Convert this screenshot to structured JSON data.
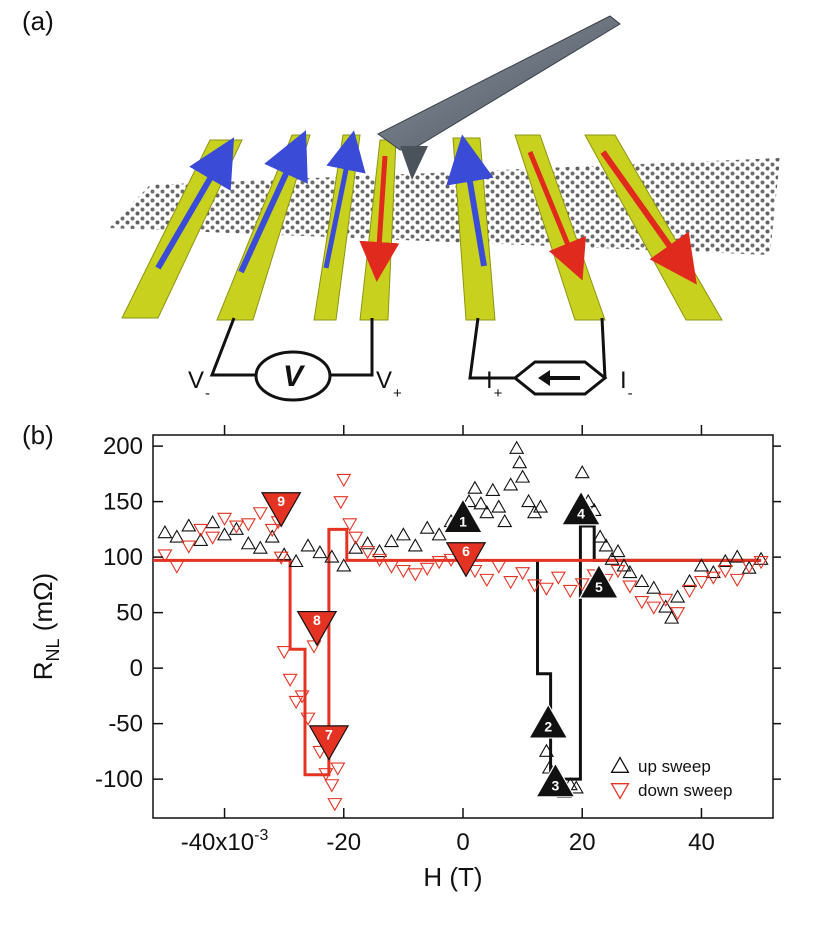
{
  "panels": {
    "a": "(a)",
    "b": "(b)"
  },
  "device": {
    "voltmeter_symbol": "V",
    "labels": {
      "v_minus": "V",
      "v_minus_sub": "-",
      "v_plus": "V",
      "v_plus_sub": "+",
      "i_plus": "I",
      "i_plus_sub": "+",
      "i_minus": "I",
      "i_minus_sub": "-"
    },
    "strip_arrows": [
      "up",
      "up",
      "up",
      "down",
      "up",
      "down",
      "down"
    ],
    "colors": {
      "electrode": "#c8d21e",
      "up_arrow": "#3a4bd8",
      "down_arrow": "#e02a1e",
      "tip": "#6b7480"
    }
  },
  "chart_data": {
    "type": "scatter",
    "xlabel": "H (T)",
    "ylabel_main": "R",
    "ylabel_sub": "NL",
    "ylabel_unit": "(mΩ)",
    "xlim": [
      -0.052,
      0.052
    ],
    "ylim": [
      -135,
      210
    ],
    "x_ticks": [
      {
        "value": -0.04,
        "label": "-40x10",
        "exp": "-3"
      },
      {
        "value": -0.02,
        "label": "-20",
        "exp": ""
      },
      {
        "value": 0.0,
        "label": "0",
        "exp": ""
      },
      {
        "value": 0.02,
        "label": "20",
        "exp": ""
      },
      {
        "value": 0.04,
        "label": "40",
        "exp": ""
      }
    ],
    "y_ticks": [
      {
        "value": 200,
        "label": "200"
      },
      {
        "value": 150,
        "label": "150"
      },
      {
        "value": 100,
        "label": "100"
      },
      {
        "value": 50,
        "label": "50"
      },
      {
        "value": 0,
        "label": "0"
      },
      {
        "value": -50,
        "label": "-50"
      },
      {
        "value": -100,
        "label": "-100"
      }
    ],
    "series": [
      {
        "name": "up sweep",
        "color": "#111111",
        "marker": "triangle-up",
        "points": [
          [
            -0.05,
            122
          ],
          [
            -0.048,
            118
          ],
          [
            -0.046,
            128
          ],
          [
            -0.044,
            115
          ],
          [
            -0.042,
            131
          ],
          [
            -0.04,
            120
          ],
          [
            -0.038,
            125
          ],
          [
            -0.036,
            112
          ],
          [
            -0.034,
            108
          ],
          [
            -0.032,
            118
          ],
          [
            -0.03,
            102
          ],
          [
            -0.028,
            96
          ],
          [
            -0.026,
            110
          ],
          [
            -0.024,
            104
          ],
          [
            -0.022,
            100
          ],
          [
            -0.02,
            92
          ],
          [
            -0.018,
            108
          ],
          [
            -0.016,
            112
          ],
          [
            -0.014,
            105
          ],
          [
            -0.012,
            114
          ],
          [
            -0.01,
            120
          ],
          [
            -0.008,
            110
          ],
          [
            -0.006,
            126
          ],
          [
            -0.004,
            120
          ],
          [
            -0.002,
            132
          ],
          [
            0.0,
            135
          ],
          [
            0.001,
            150
          ],
          [
            0.002,
            162
          ],
          [
            0.003,
            148
          ],
          [
            0.004,
            140
          ],
          [
            0.005,
            160
          ],
          [
            0.006,
            145
          ],
          [
            0.007,
            132
          ],
          [
            0.008,
            165
          ],
          [
            0.009,
            198
          ],
          [
            0.0095,
            185
          ],
          [
            0.01,
            172
          ],
          [
            0.011,
            150
          ],
          [
            0.012,
            140
          ],
          [
            0.013,
            145
          ],
          [
            0.014,
            -75
          ],
          [
            0.0145,
            -90
          ],
          [
            0.015,
            -110
          ],
          [
            0.016,
            -100
          ],
          [
            0.017,
            -112
          ],
          [
            0.018,
            -105
          ],
          [
            0.019,
            -108
          ],
          [
            0.02,
            176
          ],
          [
            0.021,
            150
          ],
          [
            0.022,
            142
          ],
          [
            0.023,
            118
          ],
          [
            0.024,
            110
          ],
          [
            0.025,
            98
          ],
          [
            0.026,
            105
          ],
          [
            0.027,
            92
          ],
          [
            0.028,
            86
          ],
          [
            0.03,
            78
          ],
          [
            0.032,
            72
          ],
          [
            0.034,
            55
          ],
          [
            0.035,
            45
          ],
          [
            0.036,
            64
          ],
          [
            0.038,
            78
          ],
          [
            0.04,
            92
          ],
          [
            0.042,
            86
          ],
          [
            0.044,
            96
          ],
          [
            0.046,
            100
          ],
          [
            0.048,
            90
          ],
          [
            0.05,
            98
          ]
        ],
        "trace": [
          [
            0.0125,
            97
          ],
          [
            0.0125,
            -5
          ],
          [
            0.0147,
            -5
          ],
          [
            0.0147,
            -100
          ],
          [
            0.0197,
            -100
          ],
          [
            0.0197,
            128
          ],
          [
            0.022,
            128
          ],
          [
            0.022,
            97
          ],
          [
            0.05,
            97
          ]
        ]
      },
      {
        "name": "down sweep",
        "color": "#e53323",
        "marker": "triangle-down",
        "points": [
          [
            -0.05,
            102
          ],
          [
            -0.048,
            92
          ],
          [
            -0.046,
            110
          ],
          [
            -0.044,
            125
          ],
          [
            -0.042,
            118
          ],
          [
            -0.04,
            135
          ],
          [
            -0.038,
            128
          ],
          [
            -0.036,
            130
          ],
          [
            -0.034,
            140
          ],
          [
            -0.032,
            125
          ],
          [
            -0.031,
            132
          ],
          [
            -0.0305,
            100
          ],
          [
            -0.03,
            15
          ],
          [
            -0.029,
            -10
          ],
          [
            -0.028,
            -30
          ],
          [
            -0.027,
            -25
          ],
          [
            -0.026,
            -45
          ],
          [
            -0.025,
            20
          ],
          [
            -0.024,
            -75
          ],
          [
            -0.023,
            -95
          ],
          [
            -0.022,
            -105
          ],
          [
            -0.0215,
            -122
          ],
          [
            -0.021,
            -90
          ],
          [
            -0.0205,
            150
          ],
          [
            -0.02,
            170
          ],
          [
            -0.019,
            130
          ],
          [
            -0.018,
            118
          ],
          [
            -0.016,
            105
          ],
          [
            -0.014,
            98
          ],
          [
            -0.012,
            92
          ],
          [
            -0.01,
            88
          ],
          [
            -0.008,
            85
          ],
          [
            -0.006,
            90
          ],
          [
            -0.004,
            96
          ],
          [
            -0.002,
            98
          ],
          [
            0.0,
            100
          ],
          [
            0.002,
            88
          ],
          [
            0.004,
            80
          ],
          [
            0.006,
            92
          ],
          [
            0.008,
            78
          ],
          [
            0.01,
            86
          ],
          [
            0.012,
            75
          ],
          [
            0.014,
            72
          ],
          [
            0.016,
            82
          ],
          [
            0.018,
            70
          ],
          [
            0.02,
            76
          ],
          [
            0.022,
            84
          ],
          [
            0.024,
            80
          ],
          [
            0.026,
            88
          ],
          [
            0.028,
            74
          ],
          [
            0.03,
            60
          ],
          [
            0.032,
            55
          ],
          [
            0.034,
            62
          ],
          [
            0.036,
            50
          ],
          [
            0.038,
            70
          ],
          [
            0.04,
            78
          ],
          [
            0.042,
            82
          ],
          [
            0.044,
            88
          ],
          [
            0.046,
            80
          ],
          [
            0.048,
            92
          ],
          [
            0.05,
            96
          ]
        ],
        "trace": [
          [
            0.05,
            97
          ],
          [
            -0.0195,
            97
          ],
          [
            -0.0195,
            125
          ],
          [
            -0.0225,
            125
          ],
          [
            -0.0225,
            -96
          ],
          [
            -0.0265,
            -96
          ],
          [
            -0.0265,
            17
          ],
          [
            -0.029,
            17
          ],
          [
            -0.029,
            97
          ],
          [
            -0.052,
            97
          ]
        ]
      }
    ],
    "annotations": [
      {
        "label": "1",
        "x": 0.0,
        "y": 135,
        "series": "up sweep"
      },
      {
        "label": "2",
        "x": 0.0143,
        "y": -50,
        "series": "up sweep"
      },
      {
        "label": "3",
        "x": 0.0155,
        "y": -103,
        "series": "up sweep"
      },
      {
        "label": "4",
        "x": 0.0198,
        "y": 142,
        "series": "up sweep"
      },
      {
        "label": "5",
        "x": 0.0228,
        "y": 76,
        "series": "up sweep"
      },
      {
        "label": "6",
        "x": 0.0005,
        "y": 100,
        "series": "down sweep"
      },
      {
        "label": "7",
        "x": -0.0225,
        "y": -65,
        "series": "down sweep"
      },
      {
        "label": "8",
        "x": -0.0245,
        "y": 38,
        "series": "down sweep"
      },
      {
        "label": "9",
        "x": -0.0305,
        "y": 145,
        "series": "down sweep"
      }
    ],
    "legend": {
      "position": "bottom-right",
      "entries": [
        "up sweep",
        "down sweep"
      ]
    }
  }
}
